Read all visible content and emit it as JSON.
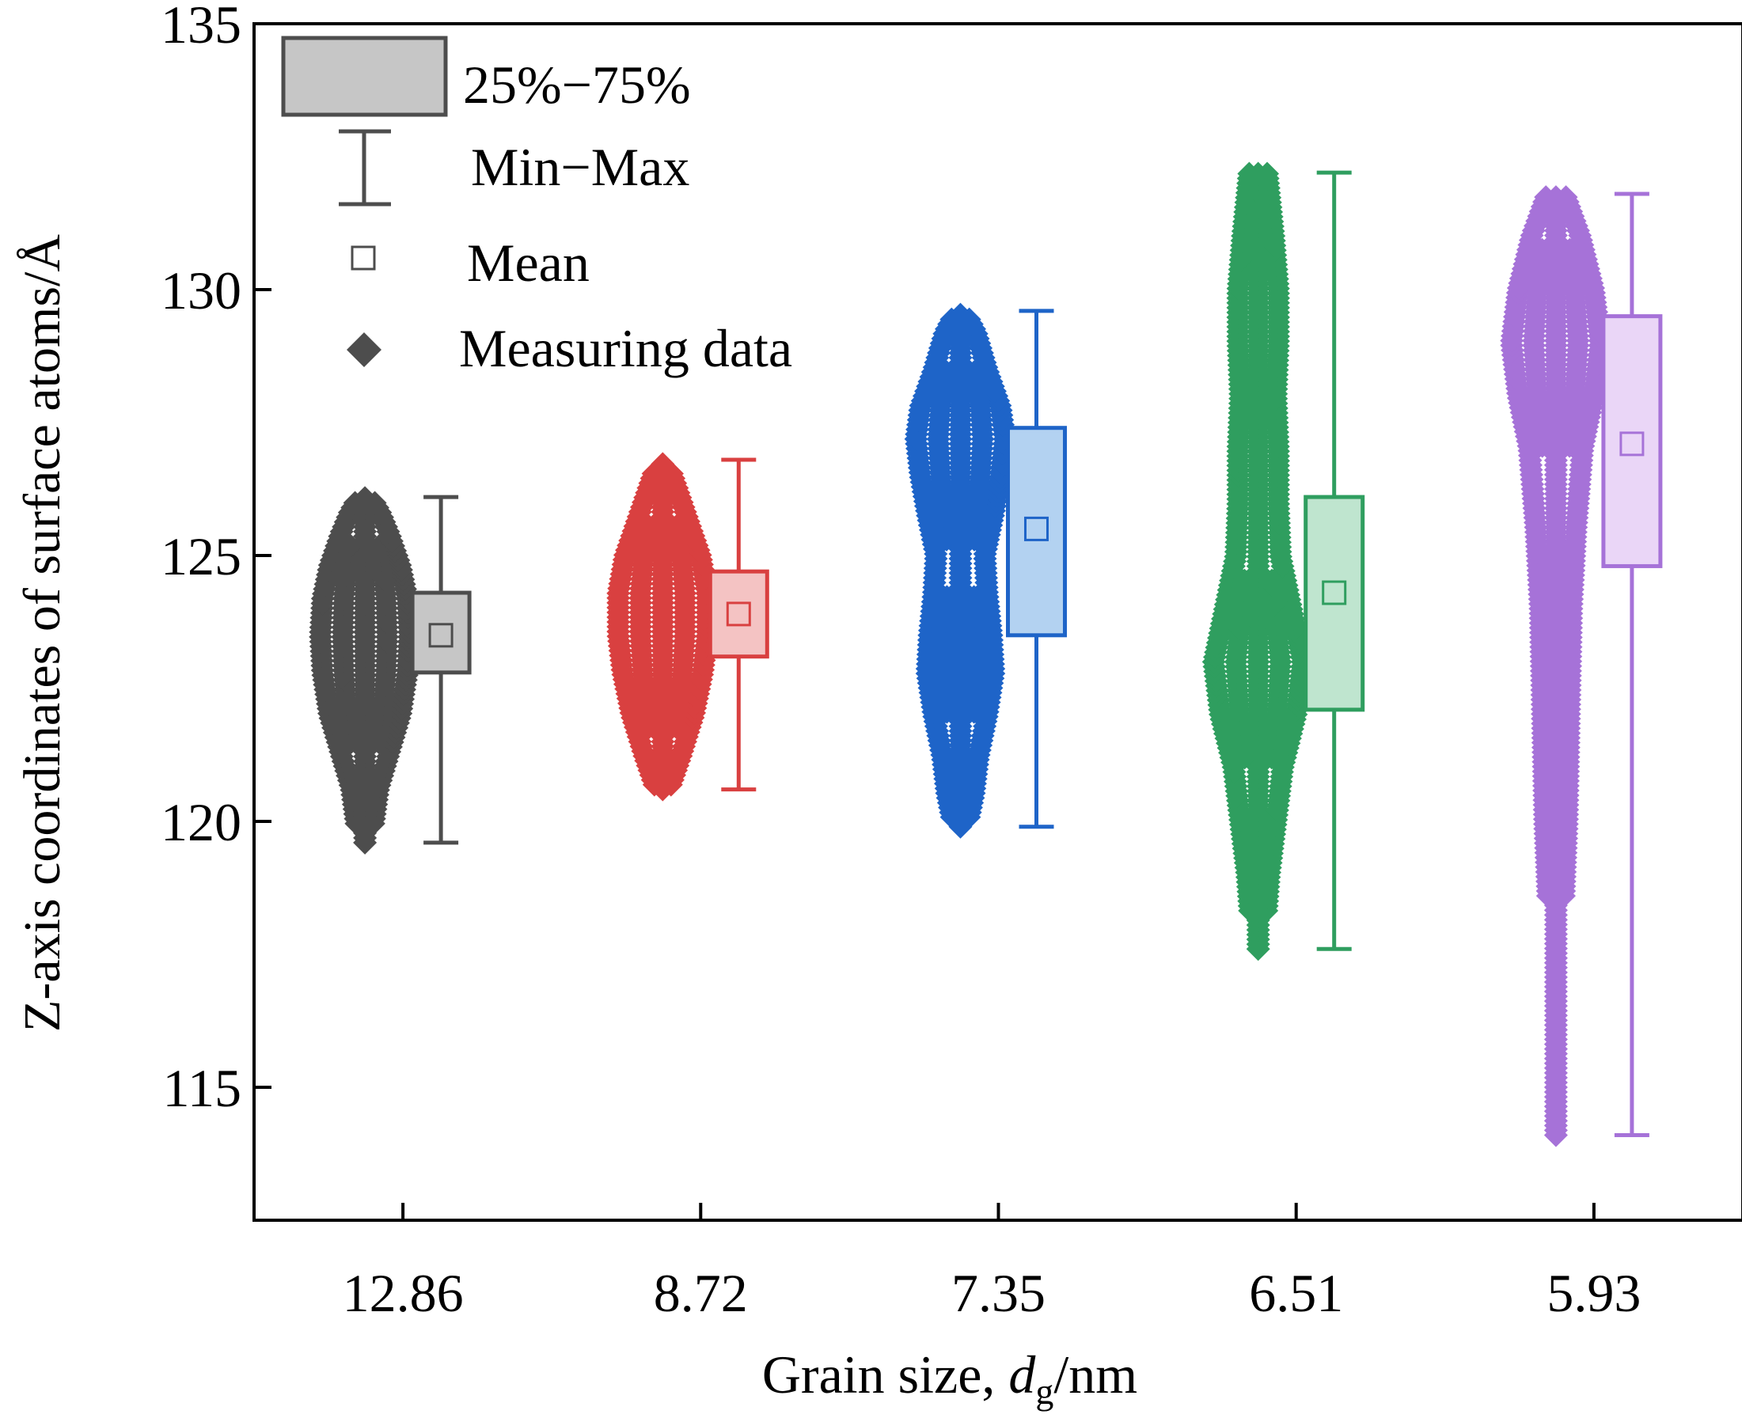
{
  "chart_data": {
    "type": "box",
    "title": "",
    "xlabel_prefix": "Grain size, ",
    "xlabel_var": "d",
    "xlabel_sub": "g",
    "xlabel_suffix": "/nm",
    "ylabel": "Z-axis coordinates of surface atoms/Å",
    "ylim": [
      112.5,
      135
    ],
    "yticks": [
      115,
      120,
      125,
      130,
      135
    ],
    "categories": [
      "12.86",
      "8.72",
      "7.35",
      "6.51",
      "5.93"
    ],
    "legend": {
      "position": "top-left",
      "items": [
        "25%−75%",
        "Min−Max",
        "Mean",
        "Measuring data"
      ]
    },
    "series": [
      {
        "category": "12.86",
        "color": "#4d4d4d",
        "fill": "#c6c6c6",
        "min": 119.6,
        "q1": 122.8,
        "mean": 123.5,
        "q3": 124.3,
        "max": 126.1,
        "profile": [
          [
            119.6,
            0.12
          ],
          [
            120,
            0.2
          ],
          [
            120.6,
            0.3
          ],
          [
            121.3,
            0.55
          ],
          [
            122,
            0.8
          ],
          [
            122.8,
            0.95
          ],
          [
            123.5,
            1.0
          ],
          [
            124.2,
            0.95
          ],
          [
            124.8,
            0.8
          ],
          [
            125.4,
            0.55
          ],
          [
            125.8,
            0.35
          ],
          [
            126.1,
            0.15
          ]
        ]
      },
      {
        "category": "8.72",
        "color": "#d94040",
        "fill": "#f4c3c3",
        "min": 120.6,
        "q1": 123.1,
        "mean": 123.9,
        "q3": 124.7,
        "max": 126.8,
        "profile": [
          [
            120.6,
            0.15
          ],
          [
            121.2,
            0.4
          ],
          [
            122,
            0.7
          ],
          [
            122.8,
            0.9
          ],
          [
            123.5,
            1.0
          ],
          [
            124.3,
            1.0
          ],
          [
            125,
            0.85
          ],
          [
            125.6,
            0.6
          ],
          [
            126.2,
            0.35
          ],
          [
            126.8,
            0.1
          ]
        ]
      },
      {
        "category": "7.35",
        "color": "#1e64c8",
        "fill": "#b3d2f1",
        "min": 119.9,
        "q1": 123.5,
        "mean": 125.5,
        "q3": 127.4,
        "max": 129.6,
        "profile": [
          [
            119.9,
            0.15
          ],
          [
            120.5,
            0.3
          ],
          [
            121.2,
            0.4
          ],
          [
            122,
            0.6
          ],
          [
            122.8,
            0.75
          ],
          [
            123.5,
            0.7
          ],
          [
            124.3,
            0.6
          ],
          [
            125,
            0.55
          ],
          [
            125.8,
            0.75
          ],
          [
            126.5,
            0.9
          ],
          [
            127.2,
            1.0
          ],
          [
            127.8,
            0.9
          ],
          [
            128.5,
            0.6
          ],
          [
            129.2,
            0.35
          ],
          [
            129.6,
            0.1
          ]
        ]
      },
      {
        "category": "6.51",
        "color": "#2f9e5f",
        "fill": "#bfe5cf",
        "min": 117.6,
        "q1": 122.1,
        "mean": 124.3,
        "q3": 126.1,
        "max": 132.2,
        "profile": [
          [
            117.6,
            0.12
          ],
          [
            119,
            0.25
          ],
          [
            120,
            0.4
          ],
          [
            121,
            0.55
          ],
          [
            122,
            0.85
          ],
          [
            123,
            1.0
          ],
          [
            124,
            0.75
          ],
          [
            125,
            0.5
          ],
          [
            126,
            0.45
          ],
          [
            127,
            0.45
          ],
          [
            128,
            0.4
          ],
          [
            129,
            0.45
          ],
          [
            130,
            0.45
          ],
          [
            131,
            0.35
          ],
          [
            132.2,
            0.2
          ]
        ]
      },
      {
        "category": "5.93",
        "color": "#a672d8",
        "fill": "#ead6f7",
        "min": 114.1,
        "q1": 124.8,
        "mean": 127.1,
        "q3": 129.5,
        "max": 131.8,
        "profile": [
          [
            114.1,
            0.1
          ],
          [
            116,
            0.12
          ],
          [
            118,
            0.15
          ],
          [
            120,
            0.25
          ],
          [
            122,
            0.3
          ],
          [
            124,
            0.35
          ],
          [
            125.5,
            0.45
          ],
          [
            127,
            0.6
          ],
          [
            128,
            0.85
          ],
          [
            129,
            1.0
          ],
          [
            130,
            0.85
          ],
          [
            131,
            0.55
          ],
          [
            131.8,
            0.2
          ]
        ]
      }
    ]
  }
}
